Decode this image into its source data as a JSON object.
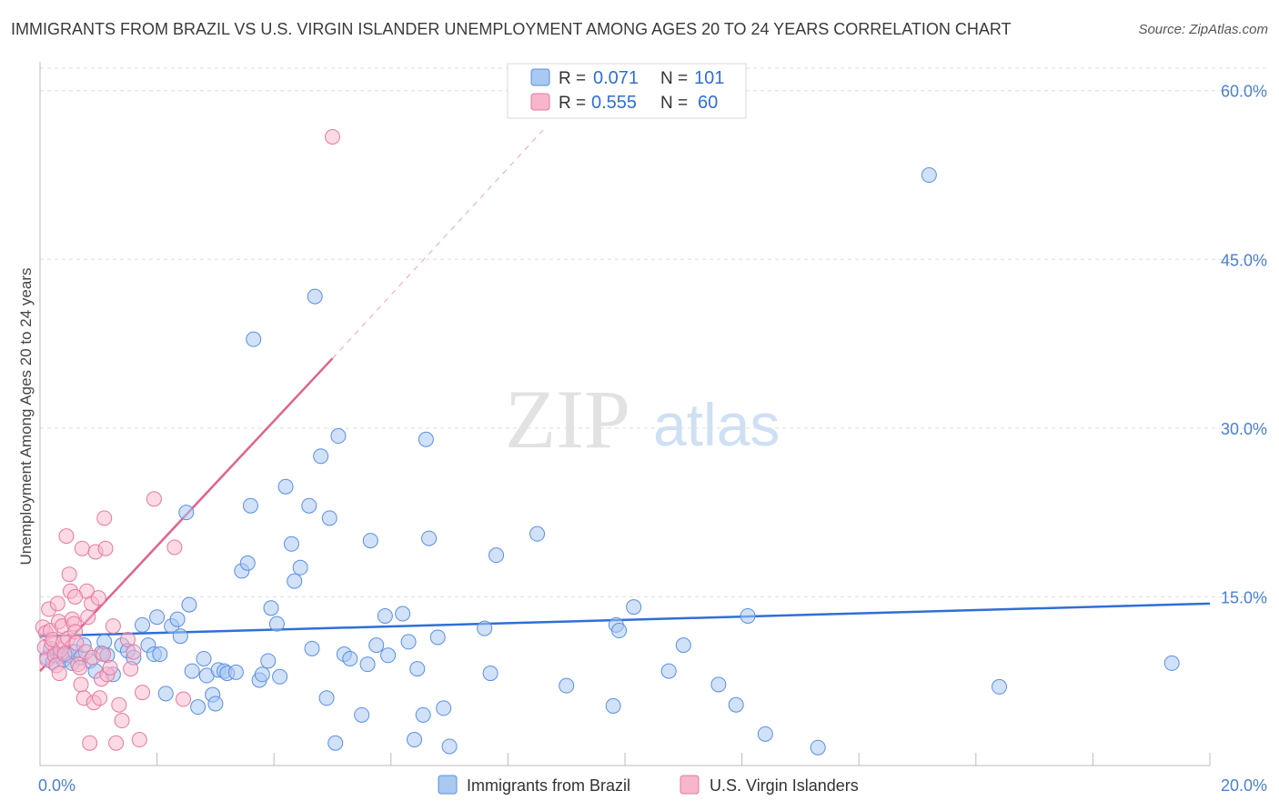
{
  "title": "IMMIGRANTS FROM BRAZIL VS U.S. VIRGIN ISLANDER UNEMPLOYMENT AMONG AGES 20 TO 24 YEARS CORRELATION CHART",
  "source": "Source: ZipAtlas.com",
  "watermark": {
    "zip": "ZIP",
    "atlas": "atlas"
  },
  "colors": {
    "series1_fill": "#a9c8f2",
    "series1_stroke": "#5b8fe0",
    "series1_line": "#2f6fd6",
    "series2_fill": "#f7b6cb",
    "series2_stroke": "#e57aa0",
    "series2_line": "#e0628f",
    "grid": "#dddddd",
    "tick_text": "#4a7fd4"
  },
  "legend": {
    "rows": [
      {
        "r_label": "R =",
        "r_value": "0.071",
        "n_label": "N =",
        "n_value": "101"
      },
      {
        "r_label": "R =",
        "r_value": "0.555",
        "n_label": "N =",
        "n_value": "60"
      }
    ]
  },
  "chart_data": {
    "type": "scatter",
    "title": "IMMIGRANTS FROM BRAZIL VS U.S. VIRGIN ISLANDER UNEMPLOYMENT AMONG AGES 20 TO 24 YEARS CORRELATION CHART",
    "xlabel": "",
    "ylabel": "Unemployment Among Ages 20 to 24 years",
    "xlim": [
      0,
      20
    ],
    "ylim": [
      0,
      62
    ],
    "x_tick_labels": [
      "0.0%",
      "20.0%"
    ],
    "y_tick_labels": [
      "15.0%",
      "30.0%",
      "45.0%",
      "60.0%"
    ],
    "y_ticks": [
      15,
      30,
      45,
      60
    ],
    "grid": true,
    "legend_position": "top-center",
    "series": [
      {
        "name": "Immigrants from Brazil",
        "r": 0.071,
        "n": 101,
        "trend": {
          "x0": 0,
          "y0": 11.5,
          "x1": 20,
          "y1": 14.4
        },
        "points": [
          [
            0.12,
            9.6
          ],
          [
            0.18,
            10.4
          ],
          [
            0.22,
            9.2
          ],
          [
            0.3,
            9.9
          ],
          [
            0.35,
            9.7
          ],
          [
            0.4,
            9.4
          ],
          [
            0.45,
            10.0
          ],
          [
            0.5,
            9.8
          ],
          [
            0.55,
            9.1
          ],
          [
            0.6,
            10.1
          ],
          [
            0.7,
            9.6
          ],
          [
            0.75,
            10.7
          ],
          [
            0.85,
            9.3
          ],
          [
            0.95,
            8.4
          ],
          [
            1.05,
            10.0
          ],
          [
            1.1,
            11.0
          ],
          [
            1.15,
            9.8
          ],
          [
            1.25,
            8.1
          ],
          [
            1.4,
            10.7
          ],
          [
            1.5,
            10.2
          ],
          [
            1.6,
            9.6
          ],
          [
            1.75,
            12.5
          ],
          [
            1.85,
            10.7
          ],
          [
            1.95,
            9.9
          ],
          [
            2.0,
            13.2
          ],
          [
            2.05,
            9.9
          ],
          [
            2.15,
            6.4
          ],
          [
            2.25,
            12.4
          ],
          [
            2.35,
            13.0
          ],
          [
            2.4,
            11.5
          ],
          [
            2.5,
            22.5
          ],
          [
            2.55,
            14.3
          ],
          [
            2.6,
            8.4
          ],
          [
            2.7,
            5.2
          ],
          [
            2.8,
            9.5
          ],
          [
            2.85,
            8.0
          ],
          [
            2.95,
            6.3
          ],
          [
            3.0,
            5.5
          ],
          [
            3.05,
            8.5
          ],
          [
            3.15,
            8.4
          ],
          [
            3.2,
            8.2
          ],
          [
            3.35,
            8.3
          ],
          [
            3.45,
            17.3
          ],
          [
            3.55,
            18.0
          ],
          [
            3.6,
            23.1
          ],
          [
            3.65,
            37.9
          ],
          [
            3.75,
            7.6
          ],
          [
            3.8,
            8.1
          ],
          [
            3.9,
            9.3
          ],
          [
            3.95,
            14.0
          ],
          [
            4.05,
            12.6
          ],
          [
            4.1,
            7.9
          ],
          [
            4.2,
            24.8
          ],
          [
            4.3,
            19.7
          ],
          [
            4.35,
            16.4
          ],
          [
            4.45,
            17.6
          ],
          [
            4.6,
            23.1
          ],
          [
            4.65,
            10.4
          ],
          [
            4.7,
            41.7
          ],
          [
            4.8,
            27.5
          ],
          [
            4.9,
            6.0
          ],
          [
            4.95,
            22.0
          ],
          [
            5.05,
            2.0
          ],
          [
            5.1,
            29.3
          ],
          [
            5.2,
            9.9
          ],
          [
            5.3,
            9.5
          ],
          [
            5.5,
            4.5
          ],
          [
            5.6,
            9.0
          ],
          [
            5.65,
            20.0
          ],
          [
            5.75,
            10.7
          ],
          [
            5.9,
            13.3
          ],
          [
            5.95,
            9.8
          ],
          [
            6.2,
            13.5
          ],
          [
            6.3,
            11.0
          ],
          [
            6.4,
            2.3
          ],
          [
            6.45,
            8.6
          ],
          [
            6.55,
            4.5
          ],
          [
            6.6,
            29.0
          ],
          [
            6.65,
            20.2
          ],
          [
            6.8,
            11.4
          ],
          [
            6.9,
            5.1
          ],
          [
            7.0,
            1.7
          ],
          [
            7.6,
            12.2
          ],
          [
            7.7,
            8.2
          ],
          [
            7.8,
            18.7
          ],
          [
            8.5,
            20.6
          ],
          [
            9.0,
            7.1
          ],
          [
            9.8,
            5.3
          ],
          [
            9.85,
            12.5
          ],
          [
            9.9,
            12.0
          ],
          [
            10.15,
            14.1
          ],
          [
            10.75,
            8.4
          ],
          [
            11.0,
            10.7
          ],
          [
            11.6,
            7.2
          ],
          [
            11.9,
            5.4
          ],
          [
            12.1,
            13.3
          ],
          [
            12.4,
            2.8
          ],
          [
            13.3,
            1.6
          ],
          [
            15.2,
            52.5
          ],
          [
            16.4,
            7.0
          ],
          [
            19.35,
            9.1
          ]
        ]
      },
      {
        "name": "U.S. Virgin Islanders",
        "r": 0.555,
        "n": 60,
        "trend": {
          "x0": 0,
          "y0": 8.4,
          "x1": 5.0,
          "y1": 36.2
        },
        "trend_dashed_to": {
          "x": 8.6,
          "y": 56.5
        },
        "points": [
          [
            0.05,
            12.3
          ],
          [
            0.08,
            10.5
          ],
          [
            0.1,
            11.8
          ],
          [
            0.12,
            9.4
          ],
          [
            0.15,
            13.9
          ],
          [
            0.18,
            12.0
          ],
          [
            0.2,
            10.9
          ],
          [
            0.22,
            11.2
          ],
          [
            0.25,
            9.8
          ],
          [
            0.28,
            8.9
          ],
          [
            0.3,
            14.4
          ],
          [
            0.32,
            12.8
          ],
          [
            0.35,
            10.3
          ],
          [
            0.38,
            12.4
          ],
          [
            0.4,
            11.0
          ],
          [
            0.42,
            9.9
          ],
          [
            0.45,
            20.4
          ],
          [
            0.48,
            11.3
          ],
          [
            0.5,
            17.0
          ],
          [
            0.52,
            15.5
          ],
          [
            0.55,
            13.0
          ],
          [
            0.58,
            12.6
          ],
          [
            0.6,
            11.9
          ],
          [
            0.62,
            10.9
          ],
          [
            0.65,
            9.0
          ],
          [
            0.68,
            8.7
          ],
          [
            0.7,
            7.2
          ],
          [
            0.72,
            19.3
          ],
          [
            0.75,
            6.0
          ],
          [
            0.78,
            10.1
          ],
          [
            0.8,
            15.5
          ],
          [
            0.82,
            13.2
          ],
          [
            0.85,
            2.0
          ],
          [
            0.88,
            14.4
          ],
          [
            0.9,
            9.6
          ],
          [
            0.92,
            5.6
          ],
          [
            0.95,
            19.0
          ],
          [
            1.0,
            14.9
          ],
          [
            1.02,
            6.0
          ],
          [
            1.05,
            7.7
          ],
          [
            1.08,
            9.9
          ],
          [
            1.1,
            22.0
          ],
          [
            1.12,
            19.3
          ],
          [
            1.15,
            8.1
          ],
          [
            1.2,
            8.7
          ],
          [
            1.25,
            12.4
          ],
          [
            1.3,
            2.0
          ],
          [
            1.35,
            5.4
          ],
          [
            1.4,
            4.0
          ],
          [
            1.5,
            11.2
          ],
          [
            1.55,
            8.6
          ],
          [
            1.6,
            10.1
          ],
          [
            1.7,
            2.3
          ],
          [
            1.75,
            6.5
          ],
          [
            1.95,
            23.7
          ],
          [
            2.3,
            19.4
          ],
          [
            2.45,
            5.9
          ],
          [
            5.0,
            55.9
          ],
          [
            0.6,
            15.0
          ],
          [
            0.33,
            8.2
          ]
        ]
      }
    ]
  },
  "bottom_legend": {
    "items": [
      {
        "label": "Immigrants from Brazil"
      },
      {
        "label": "U.S. Virgin Islanders"
      }
    ]
  }
}
